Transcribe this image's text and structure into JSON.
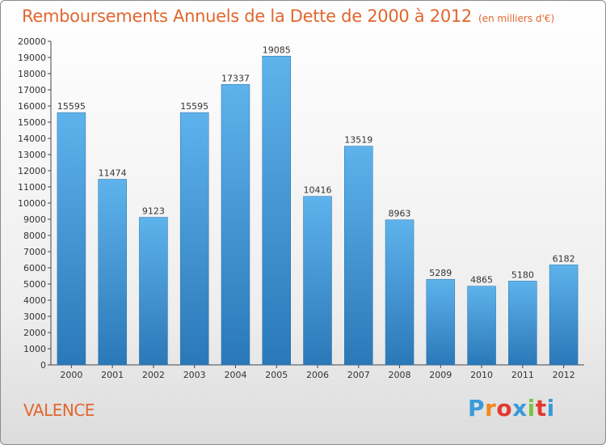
{
  "title": "Remboursements Annuels de la Dette de 2000 à 2012",
  "subtitle": "(en milliers d'€)",
  "city": "VALENCE",
  "logo": {
    "letters": [
      "P",
      "r",
      "o",
      "x",
      "i",
      "t",
      "i"
    ],
    "colors": [
      "#3a9ad9",
      "#f08a1f",
      "#e23a2f",
      "#3a9ad9",
      "#7cc242",
      "#e23a2f",
      "#3a9ad9"
    ]
  },
  "colors": {
    "bar": "#3f98dc",
    "bar_light": "#5eb3ec",
    "bar_dark": "#2a78b8",
    "text_accent": "#e1662f"
  },
  "chart_data": {
    "type": "bar",
    "categories": [
      "2000",
      "2001",
      "2002",
      "2003",
      "2004",
      "2005",
      "2006",
      "2007",
      "2008",
      "2009",
      "2010",
      "2011",
      "2012"
    ],
    "values": [
      15595,
      11474,
      9123,
      15595,
      17337,
      19085,
      10416,
      13519,
      8963,
      5289,
      4865,
      5180,
      6182
    ],
    "ylim": [
      0,
      20000
    ],
    "ytick_step": 1000,
    "grid": false
  }
}
